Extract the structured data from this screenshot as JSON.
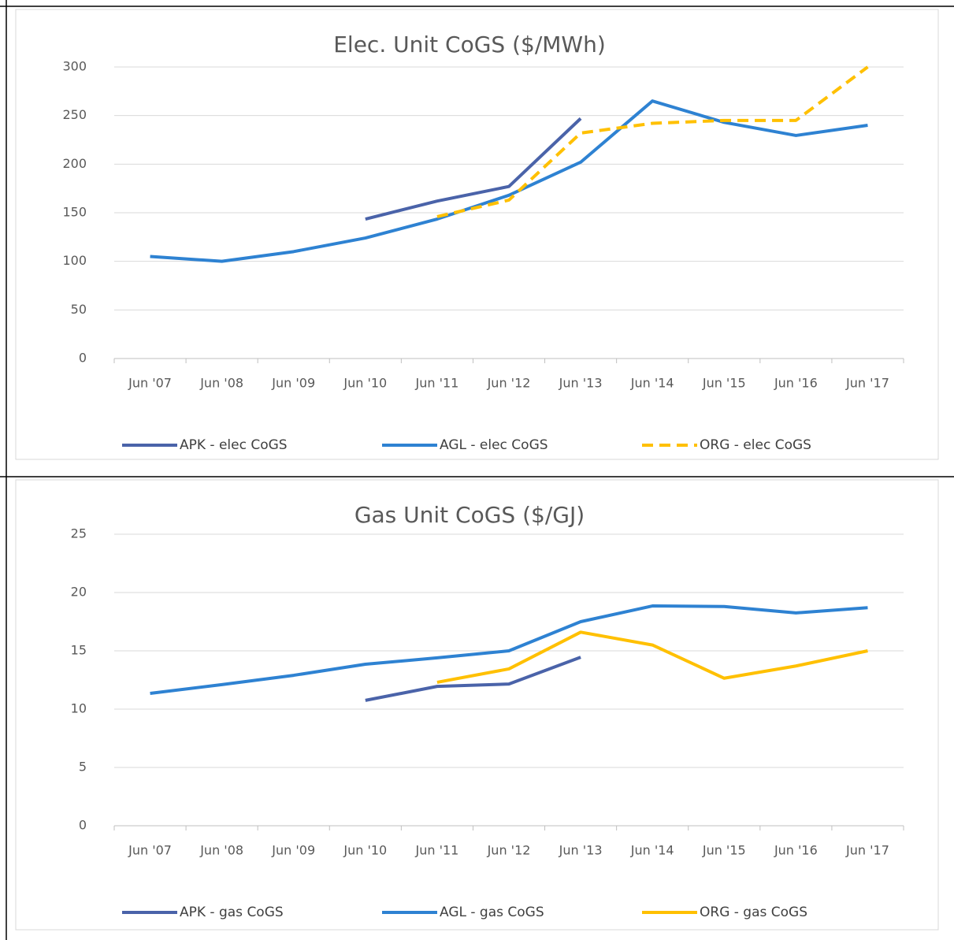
{
  "chart_data": [
    {
      "type": "line",
      "title": "Elec. Unit CoGS ($/MWh)",
      "categories": [
        "Jun '07",
        "Jun '08",
        "Jun '09",
        "Jun '10",
        "Jun '11",
        "Jun '12",
        "Jun '13",
        "Jun '14",
        "Jun '15",
        "Jun '16",
        "Jun '17"
      ],
      "series": [
        {
          "name": "APK - elec CoGS",
          "color": "#4a63a9",
          "dash": false,
          "values": [
            null,
            null,
            null,
            143.5,
            162,
            177,
            247,
            null,
            null,
            null,
            null
          ]
        },
        {
          "name": "AGL - elec CoGS",
          "color": "#2e82d2",
          "dash": false,
          "values": [
            105,
            100,
            110,
            124,
            143.5,
            168,
            202,
            265,
            243,
            229.5,
            240
          ]
        },
        {
          "name": "ORG - elec CoGS",
          "color": "#ffc000",
          "dash": true,
          "values": [
            null,
            null,
            null,
            null,
            146,
            163,
            232,
            242,
            245,
            245,
            300
          ]
        }
      ],
      "ylim": [
        0,
        300
      ],
      "yticks": [
        0,
        50,
        100,
        150,
        200,
        250,
        300
      ],
      "grid": true,
      "legend": "bottom"
    },
    {
      "type": "line",
      "title": "Gas Unit CoGS ($/GJ)",
      "categories": [
        "Jun '07",
        "Jun '08",
        "Jun '09",
        "Jun '10",
        "Jun '11",
        "Jun '12",
        "Jun '13",
        "Jun '14",
        "Jun '15",
        "Jun '16",
        "Jun '17"
      ],
      "series": [
        {
          "name": "APK - gas CoGS",
          "color": "#4a63a9",
          "dash": false,
          "values": [
            null,
            null,
            null,
            10.75,
            11.95,
            12.15,
            14.45,
            null,
            null,
            null,
            null
          ]
        },
        {
          "name": "AGL - gas CoGS",
          "color": "#2e82d2",
          "dash": false,
          "values": [
            11.35,
            12.1,
            12.9,
            13.85,
            14.4,
            15,
            17.5,
            18.85,
            18.8,
            18.25,
            18.7
          ]
        },
        {
          "name": "ORG - gas CoGS",
          "color": "#ffc000",
          "dash": false,
          "values": [
            null,
            null,
            null,
            null,
            12.3,
            13.45,
            16.6,
            15.5,
            12.65,
            13.7,
            15
          ]
        }
      ],
      "ylim": [
        0,
        25
      ],
      "yticks": [
        0,
        5,
        10,
        15,
        20,
        25
      ],
      "grid": true,
      "legend": "bottom"
    }
  ]
}
